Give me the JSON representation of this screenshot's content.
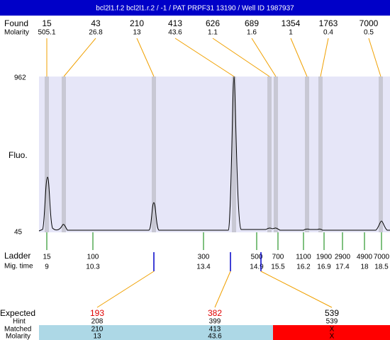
{
  "title": "bcl2l1.f.2 bcl2l1.r.2 / -1 / PAT PRPF31 13190 / Well ID 1987937",
  "found": {
    "label": "Found",
    "molarity_label": "Molarity",
    "peaks": [
      {
        "size": 15,
        "molarity": 505.1
      },
      {
        "size": 43,
        "molarity": 26.8
      },
      {
        "size": 210,
        "molarity": 13
      },
      {
        "size": 413,
        "molarity": 43.6
      },
      {
        "size": 626,
        "molarity": 1.1
      },
      {
        "size": 689,
        "molarity": 1.6
      },
      {
        "size": 1354,
        "molarity": 1
      },
      {
        "size": 1763,
        "molarity": 0.4
      },
      {
        "size": 7000,
        "molarity": 0.5
      }
    ]
  },
  "y_axis": {
    "label": "Fluo.",
    "max": 962,
    "min": 45
  },
  "ladder": {
    "label": "Ladder",
    "time_label": "Mig. time",
    "entries": [
      {
        "size": 15,
        "time": 9
      },
      {
        "size": 100,
        "time": 10.3
      },
      {
        "size": 300,
        "time": 13.4
      },
      {
        "size": 500,
        "time": 14.9
      },
      {
        "size": 700,
        "time": 15.5
      },
      {
        "size": 1100,
        "time": 16.2
      },
      {
        "size": 1900,
        "time": 16.9
      },
      {
        "size": 2900,
        "time": 17.4
      },
      {
        "size": 4900,
        "time": 18
      },
      {
        "size": 7000,
        "time": 18.5
      }
    ]
  },
  "expected": {
    "label": "Expected",
    "hint_label": "Hint",
    "matched_label": "Matched",
    "molarity_label": "Molarity",
    "columns": [
      {
        "expected": 193,
        "hint": 208,
        "matched": 210,
        "molarity": 13
      },
      {
        "expected": 382,
        "hint": 399,
        "matched": 413,
        "molarity": 43.6
      },
      {
        "expected": 539,
        "hint": 539,
        "matched": "X",
        "molarity": "X"
      }
    ]
  }
}
